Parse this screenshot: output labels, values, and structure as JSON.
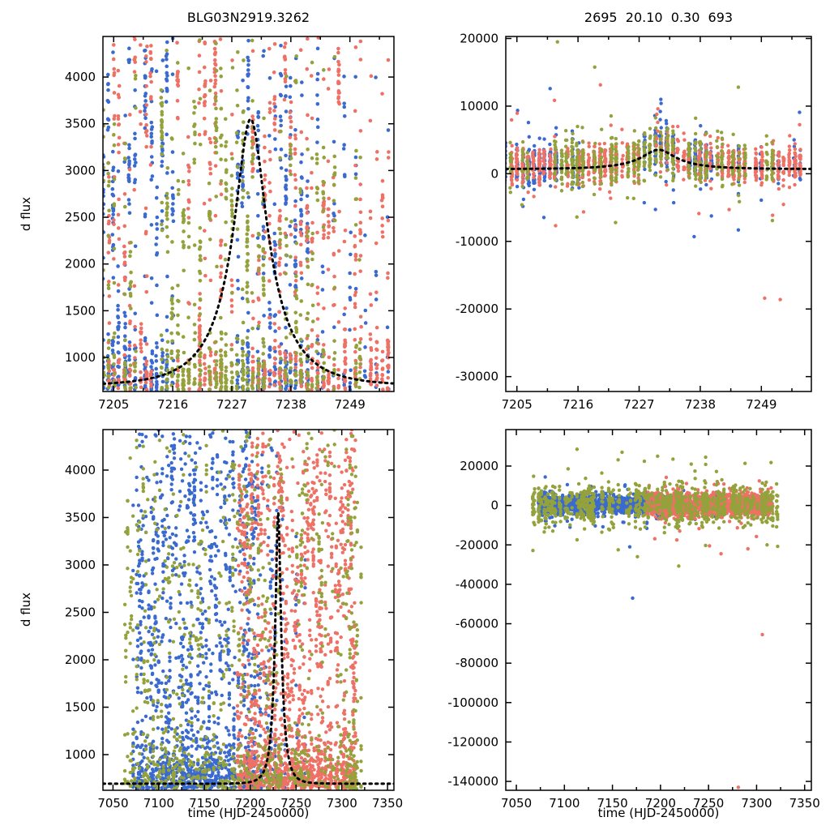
{
  "chart_data": {
    "type": "scatter",
    "description": "Microlensing light-curve diagnostic figure, 2x2 grid. Left column: d flux (zoomed flux range) with dashed Paczynski model; right column: full flux range showing outliers. Top row: event zoom HJD 7203-7257; bottom row: full season HJD 7039-7357. Three colors = three observing sites.",
    "model": {
      "t0": 7230.5,
      "tE": 10.0,
      "u0": 0.3,
      "baseline_flux": 693,
      "peak_flux": 3550,
      "style": "black dashed"
    },
    "colors": {
      "blue": "#3a6ad0",
      "red": "#ee7166",
      "green": "#94a23c",
      "model": "#000000"
    },
    "panels": [
      {
        "id": "top-left",
        "title": "BLG03N2919.3262",
        "ylabel": "d flux",
        "xlabel": "",
        "xlim": [
          7203,
          7257.2
        ],
        "ylim": [
          636,
          4434
        ],
        "xticks": [
          7205,
          7216,
          7227,
          7238,
          7249
        ],
        "yticks": [
          1000,
          1500,
          2000,
          2500,
          3000,
          3500,
          4000
        ],
        "x_minor_step": 5.5,
        "mode": "flux",
        "draw_model": true,
        "seed": 11,
        "point_radius": 2.3,
        "series": [
          {
            "name": "site-blue",
            "color": "blue",
            "windows": [
              [
                7203,
                7216,
                0.9,
                18,
                42
              ],
              [
                7228,
                7241,
                0.85,
                18,
                42
              ],
              [
                7243,
                7256,
                0.45,
                6,
                16
              ]
            ]
          },
          {
            "name": "site-red",
            "color": "red",
            "windows": [
              [
                7204,
                7227,
                0.85,
                14,
                36
              ],
              [
                7231,
                7256,
                0.9,
                14,
                38
              ]
            ]
          },
          {
            "name": "site-green",
            "color": "green",
            "windows": [
              [
                7203,
                7209,
                0.55,
                8,
                18
              ],
              [
                7212,
                7233,
                0.9,
                16,
                34
              ],
              [
                7236,
                7252,
                0.7,
                8,
                22
              ]
            ]
          }
        ]
      },
      {
        "id": "top-right",
        "title": "2695  20.10  0.30  693",
        "ylabel": "",
        "xlabel": "",
        "xlim": [
          7203,
          7258
        ],
        "ylim": [
          -32200,
          20300
        ],
        "xticks": [
          7205,
          7216,
          7227,
          7238,
          7249
        ],
        "yticks": [
          -30000,
          -20000,
          -10000,
          0,
          10000,
          20000
        ],
        "x_minor_step": 5.5,
        "mode": "band",
        "draw_model": true,
        "seed": 22,
        "point_radius": 2.2,
        "band_sigma": {
          "blue": 1500,
          "red": 1300,
          "green": 1800
        },
        "series": [
          {
            "name": "site-blue",
            "color": "blue",
            "windows": [
              [
                7203,
                7216,
                0.9,
                18,
                42
              ],
              [
                7228,
                7241,
                0.85,
                18,
                42
              ],
              [
                7243,
                7256,
                0.45,
                6,
                16
              ]
            ]
          },
          {
            "name": "site-red",
            "color": "red",
            "windows": [
              [
                7204,
                7227,
                0.85,
                14,
                36
              ],
              [
                7231,
                7256,
                0.9,
                14,
                38
              ]
            ]
          },
          {
            "name": "site-green",
            "color": "green",
            "windows": [
              [
                7203,
                7209,
                0.55,
                8,
                18
              ],
              [
                7212,
                7233,
                0.9,
                16,
                34
              ],
              [
                7236,
                7252,
                0.7,
                8,
                22
              ]
            ]
          }
        ],
        "extra_points": [
          {
            "x": 7230.8,
            "color": "blue",
            "ys": [
              4500,
              5600,
              6800,
              8000,
              9200,
              10400,
              11000
            ]
          },
          {
            "x": 7230.2,
            "color": "red",
            "ys": [
              4200,
              5200,
              6300,
              7600,
              8800,
              9600
            ]
          }
        ],
        "outliers": [
          {
            "x": 7212.3,
            "y": 19500,
            "color": "green"
          },
          {
            "x": 7205.9,
            "y": -4600,
            "color": "green"
          },
          {
            "x": 7215.8,
            "y": -6400,
            "color": "green"
          },
          {
            "x": 7221.7,
            "y": -2700,
            "color": "red"
          },
          {
            "x": 7243.2,
            "y": -5300,
            "color": "red"
          },
          {
            "x": 7236.9,
            "y": -9300,
            "color": "blue"
          },
          {
            "x": 7249.6,
            "y": -18400,
            "color": "red"
          },
          {
            "x": 7252.4,
            "y": -18600,
            "color": "red"
          }
        ]
      },
      {
        "id": "bottom-left",
        "title": "",
        "ylabel": "d flux",
        "xlabel": "time (HJD-2450000)",
        "xlim": [
          7039,
          7357
        ],
        "ylim": [
          624,
          4427
        ],
        "xticks": [
          7050,
          7100,
          7150,
          7200,
          7250,
          7300,
          7350
        ],
        "yticks": [
          1000,
          1500,
          2000,
          2500,
          3000,
          3500,
          4000
        ],
        "x_minor_step": 25,
        "mode": "flux",
        "draw_model": true,
        "seed": 33,
        "point_radius": 2.2,
        "series": [
          {
            "name": "site-blue",
            "color": "blue",
            "windows": [
              [
                7072,
                7205,
                0.8,
                6,
                20
              ],
              [
                7205,
                7262,
                0.35,
                4,
                10
              ]
            ]
          },
          {
            "name": "site-red",
            "color": "red",
            "windows": [
              [
                7186,
                7316,
                0.85,
                7,
                20
              ]
            ]
          },
          {
            "name": "site-green",
            "color": "green",
            "windows": [
              [
                7063,
                7322,
                0.55,
                4,
                12
              ]
            ]
          }
        ]
      },
      {
        "id": "bottom-right",
        "title": "",
        "ylabel": "",
        "xlabel": "time (HJD-2450000)",
        "xlim": [
          7039,
          7357
        ],
        "ylim": [
          -144500,
          38500
        ],
        "xticks": [
          7050,
          7100,
          7150,
          7200,
          7250,
          7300,
          7350
        ],
        "yticks": [
          -140000,
          -120000,
          -100000,
          -80000,
          -60000,
          -40000,
          -20000,
          0,
          20000
        ],
        "x_minor_step": 25,
        "mode": "band0",
        "draw_model": false,
        "seed": 44,
        "point_radius": 2.2,
        "band_sigma": {
          "blue": 2600,
          "red": 2900,
          "green": 5200
        },
        "series": [
          {
            "name": "site-blue",
            "color": "blue",
            "windows": [
              [
                7072,
                7205,
                0.8,
                6,
                20
              ],
              [
                7205,
                7262,
                0.35,
                4,
                10
              ]
            ]
          },
          {
            "name": "site-red",
            "color": "red",
            "windows": [
              [
                7186,
                7316,
                0.85,
                7,
                20
              ]
            ]
          },
          {
            "name": "site-green",
            "color": "green",
            "windows": [
              [
                7063,
                7322,
                0.55,
                4,
                12
              ]
            ]
          }
        ],
        "outliers": [
          {
            "x": 7160,
            "y": 27000,
            "color": "green"
          },
          {
            "x": 7197,
            "y": 25000,
            "color": "green"
          },
          {
            "x": 7213,
            "y": 23500,
            "color": "green"
          },
          {
            "x": 7232,
            "y": 21000,
            "color": "green"
          },
          {
            "x": 7247,
            "y": 24500,
            "color": "green"
          },
          {
            "x": 7156,
            "y": -22500,
            "color": "green"
          },
          {
            "x": 7176,
            "y": -26000,
            "color": "green"
          },
          {
            "x": 7168,
            "y": -21000,
            "color": "blue"
          },
          {
            "x": 7171,
            "y": -47000,
            "color": "blue"
          },
          {
            "x": 7217,
            "y": -17500,
            "color": "red"
          },
          {
            "x": 7251,
            "y": -20500,
            "color": "red"
          },
          {
            "x": 7263,
            "y": -24500,
            "color": "red"
          },
          {
            "x": 7291,
            "y": -22000,
            "color": "red"
          },
          {
            "x": 7306,
            "y": -65500,
            "color": "red"
          },
          {
            "x": 7281,
            "y": -143000,
            "color": "red"
          }
        ]
      }
    ]
  }
}
